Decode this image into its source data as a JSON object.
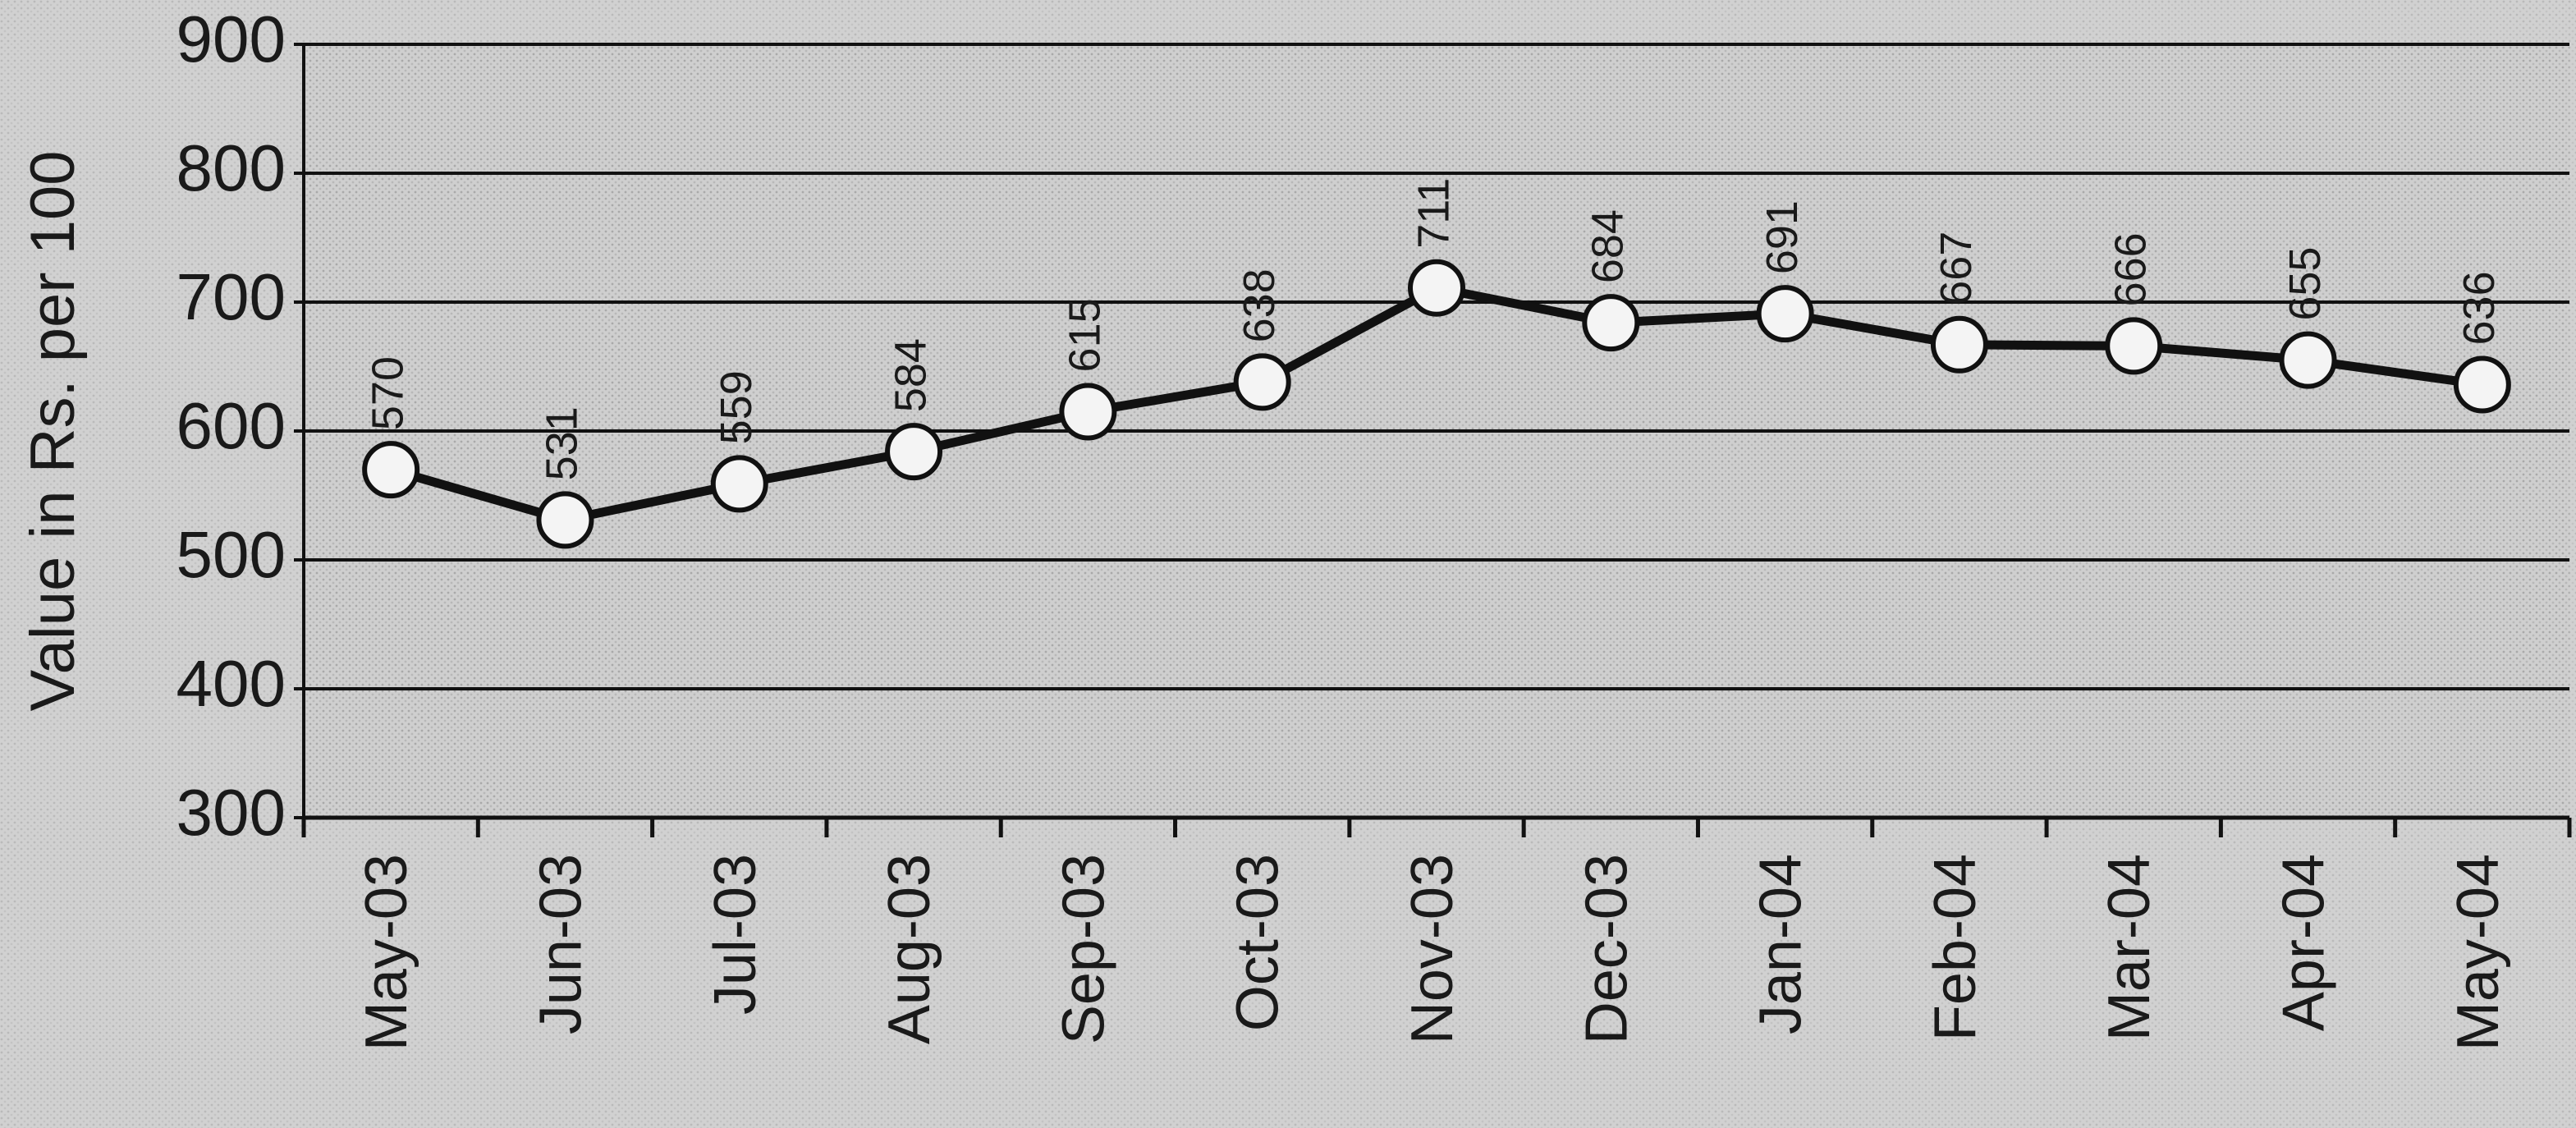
{
  "chart_data": {
    "type": "line",
    "y_label": "Value in Rs. per 100",
    "categories": [
      "May-03",
      "Jun-03",
      "Jul-03",
      "Aug-03",
      "Sep-03",
      "Oct-03",
      "Nov-03",
      "Dec-03",
      "Jan-04",
      "Feb-04",
      "Mar-04",
      "Apr-04",
      "May-04"
    ],
    "values": [
      570,
      531,
      559,
      584,
      615,
      638,
      711,
      684,
      691,
      667,
      666,
      655,
      636
    ],
    "color": "#111111",
    "marker_fill": "#f4f4f4",
    "ylim": [
      300,
      900
    ],
    "yticks": [
      300,
      400,
      500,
      600,
      700,
      800,
      900
    ],
    "grid": true
  }
}
